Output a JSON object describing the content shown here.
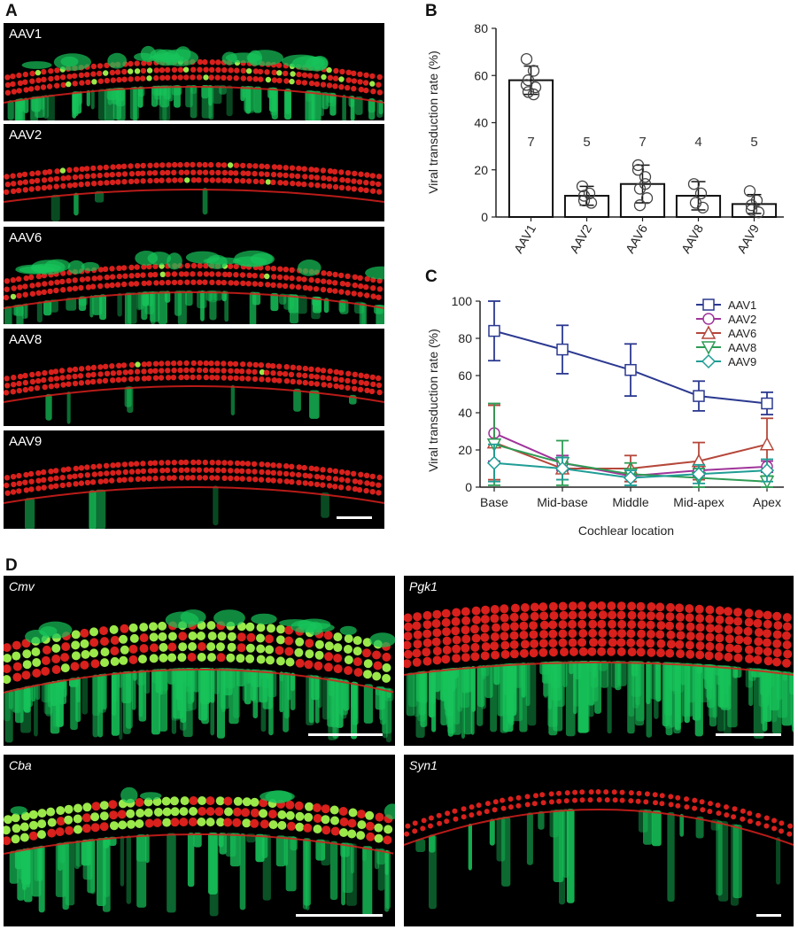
{
  "panel_labels": {
    "a": "A",
    "b": "B",
    "c": "C",
    "d": "D"
  },
  "panel_a": {
    "labels": [
      "AAV1",
      "AAV2",
      "AAV6",
      "AAV8",
      "AAV9"
    ]
  },
  "panel_d": {
    "labels": [
      "Cmv",
      "Pgk1",
      "Cba",
      "Syn1"
    ]
  },
  "colors": {
    "hair_cell_red": "#d8201c",
    "gfp_green": "#17c35a",
    "aav1": "#2b3990",
    "aav2": "#a0349a",
    "aav6": "#b5473a",
    "aav8": "#2e9c55",
    "aav9": "#1f9d95"
  },
  "chart_data": [
    {
      "type": "bar",
      "ylabel": "Viral transduction rate (%)",
      "xlabel": "",
      "ylim": [
        0,
        80
      ],
      "yticks": [
        0,
        20,
        40,
        60,
        80
      ],
      "categories": [
        "AAV1",
        "AAV2",
        "AAV6",
        "AAV8",
        "AAV9"
      ],
      "values": [
        58,
        9,
        14,
        9,
        5.5
      ],
      "errors": [
        6,
        4,
        8,
        6,
        4
      ],
      "n_labels": [
        "7",
        "5",
        "7",
        "4",
        "5"
      ],
      "points": [
        [
          67,
          62,
          58,
          55,
          53,
          52,
          56
        ],
        [
          13,
          10,
          7,
          6,
          9
        ],
        [
          22,
          17,
          12,
          8,
          5,
          14,
          20
        ],
        [
          14,
          10,
          6,
          4
        ],
        [
          11,
          7,
          3,
          2,
          5
        ]
      ]
    },
    {
      "type": "line",
      "ylabel": "Viral transduction rate (%)",
      "xlabel": "Cochlear location",
      "ylim": [
        0,
        100
      ],
      "yticks": [
        0,
        20,
        40,
        60,
        80,
        100
      ],
      "categories": [
        "Base",
        "Mid-base",
        "Middle",
        "Mid-apex",
        "Apex"
      ],
      "legend_position": "top-right",
      "series": [
        {
          "name": "AAV1",
          "marker": "square",
          "values": [
            84,
            74,
            63,
            49,
            45
          ],
          "errors": [
            16,
            13,
            14,
            8,
            6
          ]
        },
        {
          "name": "AAV2",
          "marker": "circle",
          "values": [
            29,
            13,
            6,
            9,
            11
          ],
          "errors": [
            15,
            4,
            3,
            3,
            3
          ]
        },
        {
          "name": "AAV6",
          "marker": "triangle-up",
          "values": [
            24,
            10,
            10,
            14,
            23
          ],
          "errors": [
            20,
            6,
            7,
            10,
            14
          ]
        },
        {
          "name": "AAV8",
          "marker": "triangle-down",
          "values": [
            23,
            13,
            7,
            5,
            3
          ],
          "errors": [
            22,
            12,
            6,
            5,
            3
          ]
        },
        {
          "name": "AAV9",
          "marker": "diamond",
          "values": [
            13,
            10,
            5,
            7,
            9
          ],
          "errors": [
            10,
            6,
            4,
            5,
            6
          ]
        }
      ]
    }
  ]
}
